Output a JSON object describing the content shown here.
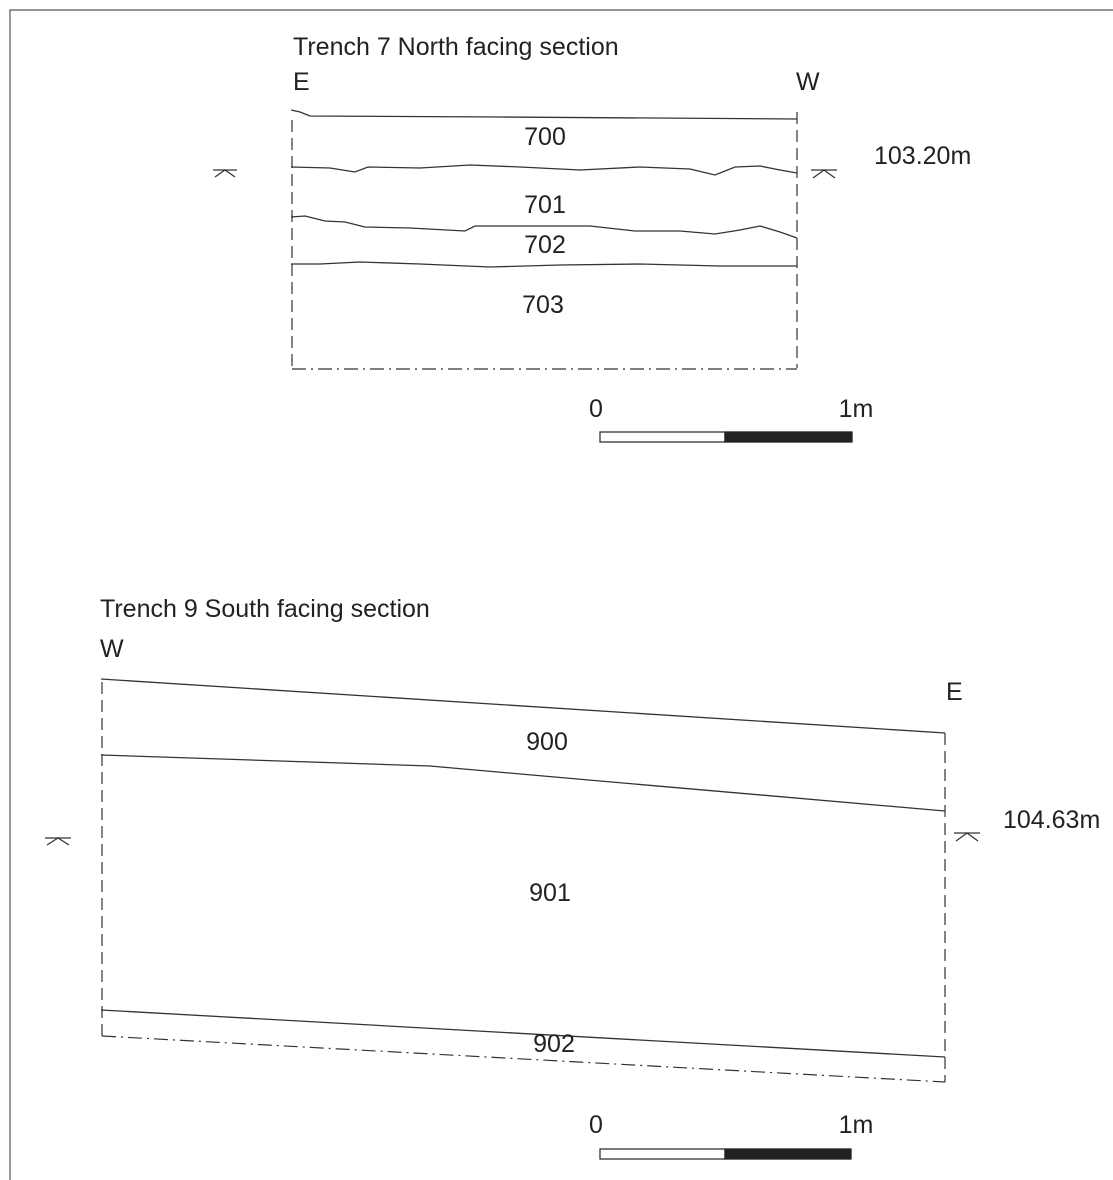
{
  "trench7": {
    "title": "Trench 7 North facing section",
    "left_label": "E",
    "right_label": "W",
    "level": "103.20m",
    "contexts": [
      "700",
      "701",
      "702",
      "703"
    ]
  },
  "trench9": {
    "title": "Trench 9 South facing section",
    "left_label": "W",
    "right_label": "E",
    "level": "104.63m",
    "contexts": [
      "900",
      "901",
      "902"
    ]
  },
  "scale_bar": {
    "start_label": "0",
    "end_label": "1m"
  }
}
